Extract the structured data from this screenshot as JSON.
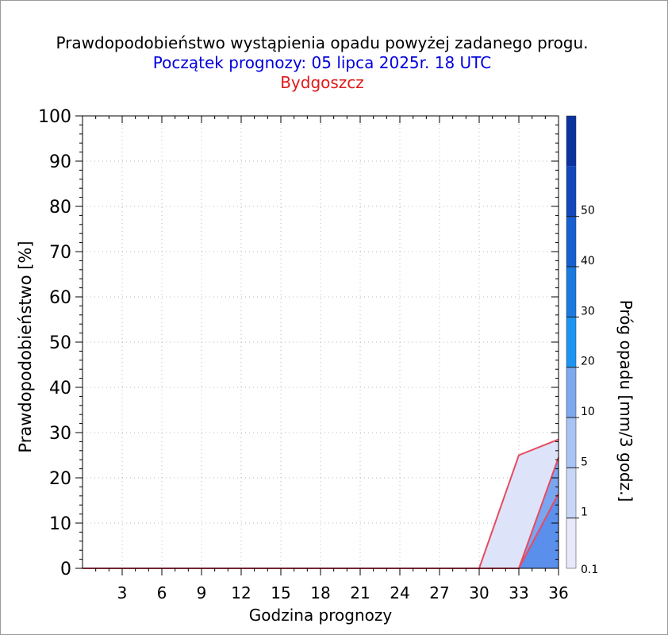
{
  "header": {
    "title": "Prawdopodobieństwo wystąpienia opadu powyżej zadanego progu.",
    "subtitle": "Początek prognozy: 05 lipca 2025r. 18 UTC",
    "location": "Bydgoszcz"
  },
  "chart_data": {
    "type": "area",
    "xlabel": "Godzina prognozy",
    "ylabel": "Prawdopodobieństwo [%]",
    "xlim": [
      0,
      36
    ],
    "ylim": [
      0,
      100
    ],
    "xticks": [
      "3",
      "6",
      "9",
      "12",
      "15",
      "18",
      "21",
      "24",
      "27",
      "30",
      "33",
      "36"
    ],
    "yticks": [
      "0",
      "10",
      "20",
      "30",
      "40",
      "50",
      "60",
      "70",
      "80",
      "90",
      "100"
    ],
    "grid": true,
    "x": [
      0,
      3,
      6,
      9,
      12,
      15,
      18,
      21,
      24,
      27,
      30,
      33,
      36
    ],
    "series": [
      {
        "name": "0.1",
        "color": "#dde4fa",
        "values": [
          0,
          0,
          0,
          0,
          0,
          0,
          0,
          0,
          0,
          0,
          0,
          25,
          28.5
        ]
      },
      {
        "name": "1",
        "color": "#7aa6f0",
        "values": [
          0,
          0,
          0,
          0,
          0,
          0,
          0,
          0,
          0,
          0,
          0,
          0,
          24.5
        ]
      },
      {
        "name": "5",
        "color": "#5b8fec",
        "values": [
          0,
          0,
          0,
          0,
          0,
          0,
          0,
          0,
          0,
          0,
          0,
          0,
          16.5
        ]
      }
    ],
    "outline_color": "#e84a5f",
    "colorbar": {
      "label": "Próg opadu [mm/3 godz.]",
      "levels": [
        "0.1",
        "1",
        "5",
        "10",
        "20",
        "30",
        "40",
        "50"
      ],
      "colors": [
        "#e8eafc",
        "#c9d7f7",
        "#a9c3f4",
        "#7ea9ef",
        "#1c95f2",
        "#1b7ae0",
        "#1660d2",
        "#1248bc",
        "#0b33a0"
      ]
    }
  }
}
